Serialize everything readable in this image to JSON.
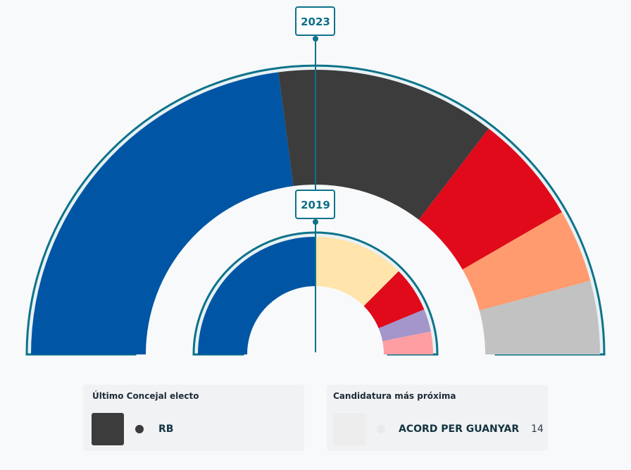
{
  "chart_data": [
    {
      "type": "pie",
      "variant": "semicircle-parliament",
      "label": "2023",
      "series": [
        {
          "color": "#0055a4",
          "value": 11
        },
        {
          "color": "#3c3c3c",
          "value": 6
        },
        {
          "color": "#e00a1a",
          "value": 3
        },
        {
          "color": "#ff9b6e",
          "value": 2
        },
        {
          "color": "#c2c2c2",
          "value": 2
        }
      ]
    },
    {
      "type": "pie",
      "variant": "semicircle-parliament",
      "label": "2019",
      "series": [
        {
          "color": "#0055a4",
          "value": 8
        },
        {
          "color": "#ffe4ab",
          "value": 4
        },
        {
          "color": "#e00a1a",
          "value": 2
        },
        {
          "color": "#a495cb",
          "value": 1
        },
        {
          "color": "#ff9ea2",
          "value": 1
        }
      ]
    }
  ],
  "colors": {
    "outline": "#0d7389",
    "background": "#f8f9fb",
    "card": "#f1f2f4"
  },
  "last_elected": {
    "title": "Último Concejal electo",
    "party": "RB",
    "swatch_color": "#3c3c3c",
    "dot_color": "#3c3c3c"
  },
  "next_candidate": {
    "title": "Candidatura más próxima",
    "party": "ACORD PER GUANYAR",
    "votes": "14",
    "swatch_color": "#ededed",
    "dot_color": "#e9eaec"
  }
}
